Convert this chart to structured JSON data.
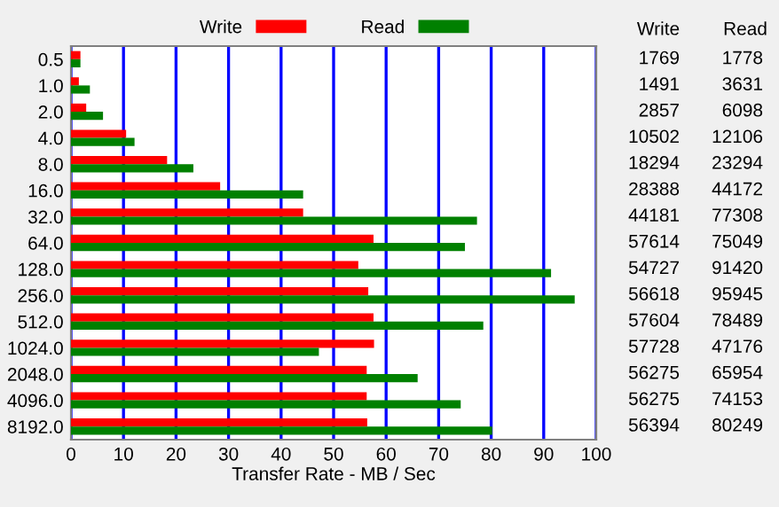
{
  "chart_data": {
    "type": "bar",
    "orientation": "horizontal",
    "xlabel": "Transfer Rate - MB / Sec",
    "categories": [
      "0.5",
      "1.0",
      "2.0",
      "4.0",
      "8.0",
      "16.0",
      "32.0",
      "64.0",
      "128.0",
      "256.0",
      "512.0",
      "1024.0",
      "2048.0",
      "4096.0",
      "8192.0"
    ],
    "series": [
      {
        "name": "Write",
        "color": "#ff0000",
        "values": [
          1.8,
          1.5,
          2.9,
          10.5,
          18.3,
          28.4,
          44.2,
          57.6,
          54.7,
          56.6,
          57.6,
          57.7,
          56.3,
          56.3,
          56.4
        ]
      },
      {
        "name": "Read",
        "color": "#008000",
        "values": [
          1.8,
          3.6,
          6.1,
          12.1,
          23.3,
          44.2,
          77.3,
          75.0,
          91.4,
          95.9,
          78.5,
          47.2,
          66.0,
          74.2,
          80.2
        ]
      }
    ],
    "annotations": [
      "1769",
      "1778",
      "1491",
      "3631",
      "2857",
      "6098",
      "10502",
      "12106",
      "18294",
      "23294",
      "28388",
      "44172",
      "44181",
      "77308",
      "57614",
      "75049",
      "54727",
      "91420",
      "56618",
      "95945",
      "57604",
      "78489",
      "57728",
      "47176",
      "56275",
      "65954",
      "56275",
      "74153",
      "56394",
      "80249"
    ],
    "xlim": [
      0,
      100
    ],
    "xticks": [
      0,
      10,
      20,
      30,
      40,
      50,
      60,
      70,
      80,
      90,
      100
    ],
    "grid": "x",
    "legend": "top"
  }
}
